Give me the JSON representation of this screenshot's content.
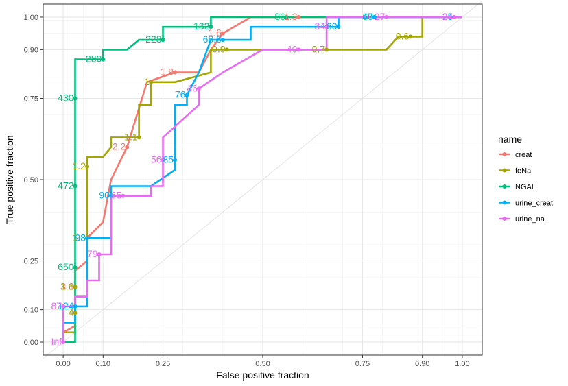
{
  "chart_data": {
    "type": "line",
    "subtype": "roc",
    "title": "",
    "xlabel": "False positive fraction",
    "ylabel": "True positive fraction",
    "xlim": [
      -0.05,
      1.05
    ],
    "ylim": [
      -0.04,
      1.04
    ],
    "x_ticks": [
      0.0,
      0.1,
      0.25,
      0.5,
      0.75,
      0.9,
      1.0
    ],
    "x_tick_labels": [
      "0.00",
      "0.10",
      "0.25",
      "0.50",
      "0.75",
      "0.90",
      "1.00"
    ],
    "y_ticks": [
      0.0,
      0.1,
      0.25,
      0.5,
      0.75,
      0.9,
      1.0
    ],
    "y_tick_labels": [
      "0.00",
      "0.10",
      "0.25",
      "0.50",
      "0.75",
      "0.90",
      "1.00"
    ],
    "minor_grid": [
      0.01,
      0.05,
      0.2,
      0.3,
      0.4,
      0.6,
      0.7,
      0.8,
      0.95,
      0.99
    ],
    "diagonal_reference": true,
    "legend": {
      "title": "name",
      "position": "right"
    },
    "series": [
      {
        "name": "creat",
        "color": "#F8766D",
        "x": [
          0.0,
          0.0,
          0.03,
          0.03,
          0.06,
          0.06,
          0.1,
          0.12,
          0.16,
          0.21,
          0.28,
          0.34,
          0.37,
          0.4,
          0.47,
          0.53,
          1.0
        ],
        "y": [
          0.0,
          0.03,
          0.05,
          0.22,
          0.25,
          0.32,
          0.37,
          0.5,
          0.6,
          0.8,
          0.83,
          0.83,
          0.9,
          0.95,
          1.0,
          1.0,
          1.0
        ],
        "points": [
          {
            "x": 0.03,
            "y": 0.17,
            "label": "3.1"
          },
          {
            "x": 0.16,
            "y": 0.6,
            "label": "2.2"
          },
          {
            "x": 0.28,
            "y": 0.83,
            "label": "1.9"
          },
          {
            "x": 0.4,
            "y": 0.95,
            "label": "1.6"
          },
          {
            "x": 0.59,
            "y": 1.0,
            "label": "1.3"
          }
        ]
      },
      {
        "name": "feNa",
        "color": "#A3A500",
        "x": [
          0.0,
          0.0,
          0.03,
          0.03,
          0.06,
          0.06,
          0.1,
          0.12,
          0.12,
          0.19,
          0.19,
          0.22,
          0.22,
          0.28,
          0.37,
          0.37,
          0.5,
          0.81,
          0.84,
          0.9,
          0.9,
          1.0
        ],
        "y": [
          0.0,
          0.03,
          0.03,
          0.14,
          0.14,
          0.57,
          0.57,
          0.6,
          0.63,
          0.63,
          0.73,
          0.73,
          0.8,
          0.8,
          0.83,
          0.9,
          0.9,
          0.9,
          0.94,
          0.94,
          1.0,
          1.0
        ],
        "points": [
          {
            "x": 0.03,
            "y": 0.09,
            "label": "4"
          },
          {
            "x": 0.03,
            "y": 0.17,
            "label": "1.6"
          },
          {
            "x": 0.06,
            "y": 0.32,
            "label": "1.3"
          },
          {
            "x": 0.06,
            "y": 0.54,
            "label": "1.2"
          },
          {
            "x": 0.19,
            "y": 0.63,
            "label": "1.1"
          },
          {
            "x": 0.22,
            "y": 0.8,
            "label": "1"
          },
          {
            "x": 0.41,
            "y": 0.9,
            "label": "0.9"
          },
          {
            "x": 0.66,
            "y": 0.9,
            "label": "0.7"
          },
          {
            "x": 0.87,
            "y": 0.94,
            "label": "0.6"
          }
        ]
      },
      {
        "name": "NGAL",
        "color": "#00BF7D",
        "x": [
          0.0,
          0.0,
          0.03,
          0.03,
          0.1,
          0.1,
          0.16,
          0.19,
          0.25,
          0.25,
          0.37,
          0.37,
          0.56,
          1.0
        ],
        "y": [
          0.0,
          0.0,
          0.0,
          0.87,
          0.87,
          0.9,
          0.9,
          0.93,
          0.93,
          0.97,
          0.97,
          1.0,
          1.0,
          1.0
        ],
        "points": [
          {
            "x": 0.03,
            "y": 0.23,
            "label": "650"
          },
          {
            "x": 0.03,
            "y": 0.48,
            "label": "472"
          },
          {
            "x": 0.03,
            "y": 0.75,
            "label": "430"
          },
          {
            "x": 0.1,
            "y": 0.87,
            "label": "280"
          },
          {
            "x": 0.25,
            "y": 0.93,
            "label": "228"
          },
          {
            "x": 0.37,
            "y": 0.97,
            "label": "132"
          },
          {
            "x": 0.56,
            "y": 1.0,
            "label": "86"
          },
          {
            "x": 0.78,
            "y": 1.0,
            "label": "67"
          }
        ]
      },
      {
        "name": "urine_creat",
        "color": "#00B0F6",
        "x": [
          0.0,
          0.0,
          0.03,
          0.03,
          0.06,
          0.06,
          0.12,
          0.12,
          0.22,
          0.28,
          0.28,
          0.31,
          0.31,
          0.34,
          0.37,
          0.37,
          0.4,
          0.47,
          0.47,
          0.69,
          0.69,
          1.0
        ],
        "y": [
          0.0,
          0.06,
          0.06,
          0.11,
          0.11,
          0.32,
          0.32,
          0.48,
          0.48,
          0.53,
          0.73,
          0.73,
          0.76,
          0.83,
          0.93,
          0.93,
          0.93,
          0.93,
          0.97,
          0.97,
          1.0,
          1.0
        ],
        "points": [
          {
            "x": 0.03,
            "y": 0.11,
            "label": "124"
          },
          {
            "x": 0.06,
            "y": 0.32,
            "label": "98"
          },
          {
            "x": 0.12,
            "y": 0.45,
            "label": "90"
          },
          {
            "x": 0.28,
            "y": 0.56,
            "label": "85"
          },
          {
            "x": 0.31,
            "y": 0.76,
            "label": "76"
          },
          {
            "x": 0.4,
            "y": 0.93,
            "label": "68.6"
          },
          {
            "x": 0.69,
            "y": 0.97,
            "label": "60"
          },
          {
            "x": 0.78,
            "y": 1.0,
            "label": "40"
          },
          {
            "x": 0.98,
            "y": 1.0,
            "label": "25"
          }
        ]
      },
      {
        "name": "urine_na",
        "color": "#E76BF3",
        "x": [
          0.0,
          0.0,
          0.03,
          0.03,
          0.06,
          0.06,
          0.09,
          0.09,
          0.12,
          0.12,
          0.22,
          0.22,
          0.25,
          0.25,
          0.34,
          0.34,
          0.4,
          0.5,
          0.66,
          0.66,
          1.0
        ],
        "y": [
          0.0,
          0.11,
          0.11,
          0.14,
          0.14,
          0.19,
          0.19,
          0.27,
          0.27,
          0.45,
          0.45,
          0.48,
          0.48,
          0.63,
          0.73,
          0.78,
          0.83,
          0.9,
          0.9,
          1.0,
          1.0
        ],
        "points": [
          {
            "x": 0.0,
            "y": 0.11,
            "label": "87"
          },
          {
            "x": 0.09,
            "y": 0.27,
            "label": "79"
          },
          {
            "x": 0.15,
            "y": 0.45,
            "label": "65"
          },
          {
            "x": 0.25,
            "y": 0.56,
            "label": "56"
          },
          {
            "x": 0.34,
            "y": 0.78,
            "label": "46"
          },
          {
            "x": 0.59,
            "y": 0.9,
            "label": "40"
          },
          {
            "x": 0.66,
            "y": 0.97,
            "label": "34"
          },
          {
            "x": 0.81,
            "y": 1.0,
            "label": "27"
          },
          {
            "x": 0.98,
            "y": 1.0,
            "label": "24"
          },
          {
            "x": 0.0,
            "y": 0.0,
            "label": "Inf"
          }
        ]
      }
    ]
  }
}
